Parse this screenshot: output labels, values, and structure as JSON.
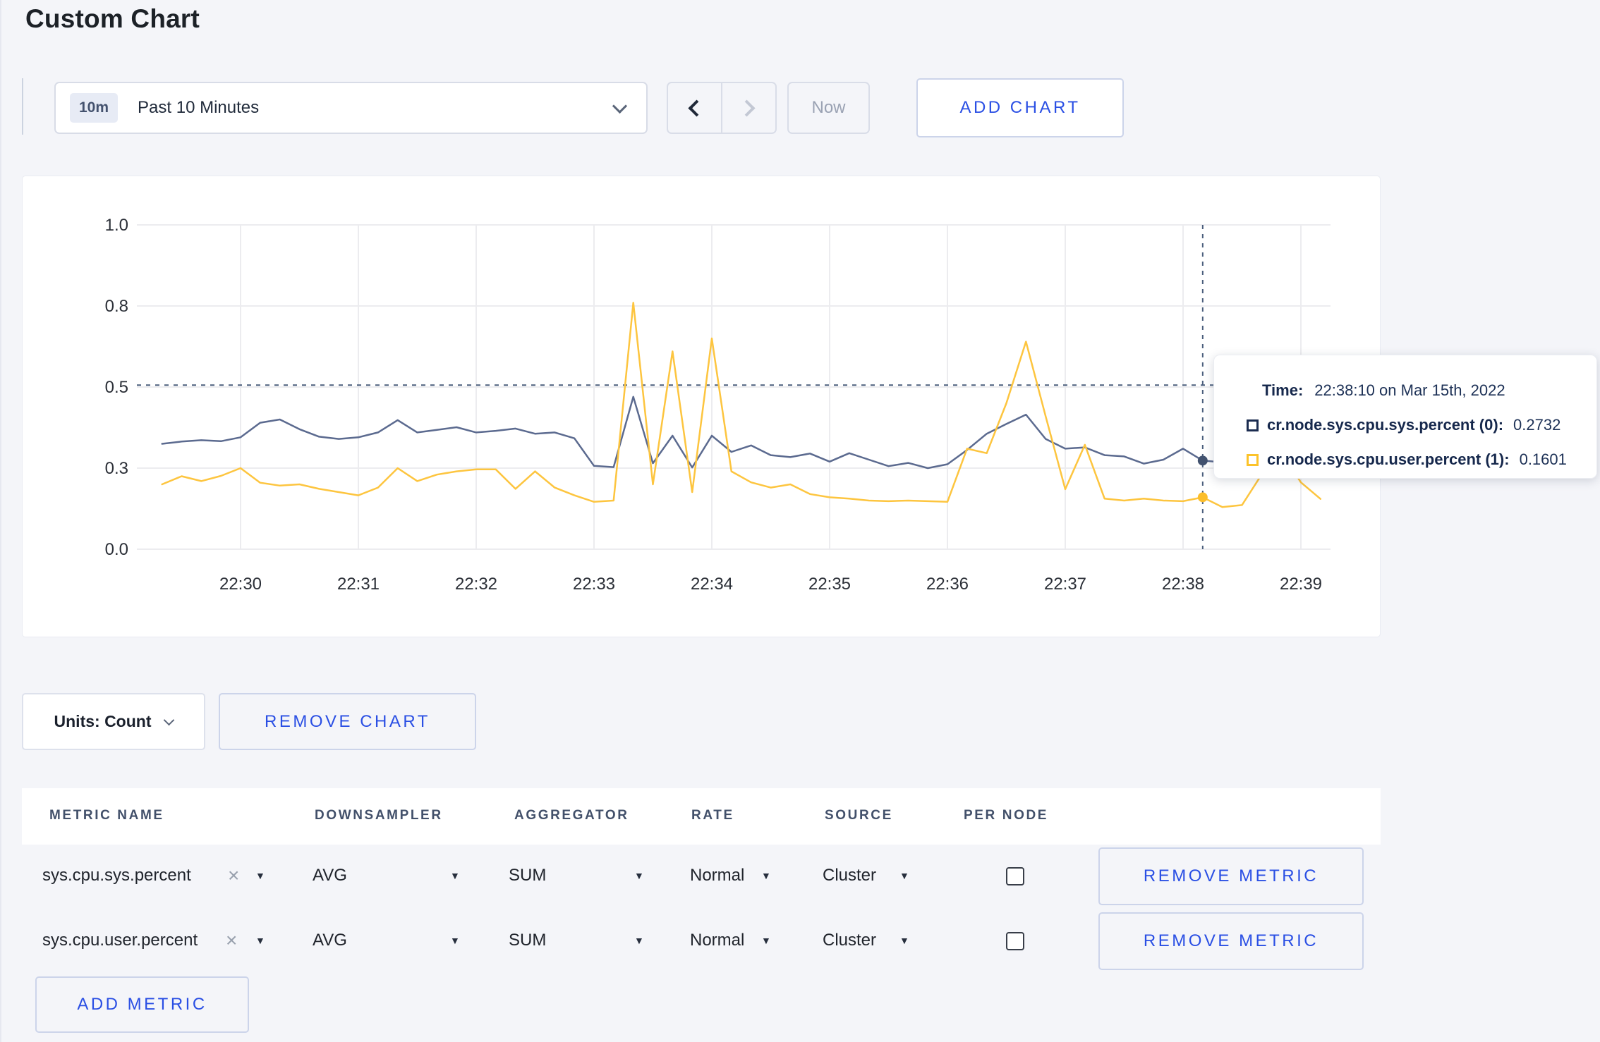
{
  "page": {
    "title": "Custom Chart"
  },
  "toolbar": {
    "time_badge": "10m",
    "time_label": "Past 10 Minutes",
    "now_label": "Now",
    "add_chart_label": "ADD CHART"
  },
  "chart_controls": {
    "units_label": "Units: Count",
    "remove_chart_label": "REMOVE CHART"
  },
  "tooltip": {
    "time_label": "Time:",
    "time_value": "22:38:10 on Mar 15th, 2022",
    "entries": [
      {
        "name": "cr.node.sys.cpu.sys.percent (0):",
        "value": "0.2732",
        "color": "#1b2c50"
      },
      {
        "name": "cr.node.sys.cpu.user.percent (1):",
        "value": "0.1601",
        "color": "#fcc32a"
      }
    ]
  },
  "chart_data": {
    "type": "line",
    "title": "",
    "xlabel": "",
    "ylabel": "",
    "grid": true,
    "legend_position": "tooltip",
    "ylim": [
      0,
      1.0
    ],
    "y_tick_values": [
      0,
      0.25,
      0.5,
      0.75,
      1.0
    ],
    "y_tick_labels": [
      "0.0",
      "0.3",
      "0.5",
      "0.8",
      "1.0"
    ],
    "x_ticks": [
      "22:30",
      "22:31",
      "22:32",
      "22:33",
      "22:34",
      "22:35",
      "22:36",
      "22:37",
      "22:38",
      "22:39"
    ],
    "x_range_sec": [
      "22:29:08",
      "22:39:13"
    ],
    "start_time": "22:29:20",
    "interval_sec": 10,
    "crosshair": {
      "time": "22:38:10",
      "y_value": 0.506
    },
    "colors": {
      "gridline": "#ececef",
      "axis_text": "#2b2f37",
      "crosshair": "#4a5e7c"
    },
    "series": [
      {
        "name": "cr.node.sys.cpu.sys.percent",
        "color": "#5b6a8f",
        "values": [
          0.325,
          0.332,
          0.336,
          0.333,
          0.345,
          0.39,
          0.4,
          0.37,
          0.347,
          0.34,
          0.345,
          0.36,
          0.398,
          0.36,
          0.368,
          0.376,
          0.36,
          0.365,
          0.372,
          0.356,
          0.36,
          0.342,
          0.257,
          0.253,
          0.47,
          0.265,
          0.35,
          0.252,
          0.35,
          0.3,
          0.32,
          0.29,
          0.284,
          0.295,
          0.27,
          0.296,
          0.276,
          0.256,
          0.266,
          0.25,
          0.262,
          0.306,
          0.356,
          0.386,
          0.415,
          0.34,
          0.31,
          0.314,
          0.29,
          0.286,
          0.264,
          0.276,
          0.31,
          0.2732,
          0.268,
          0.28,
          0.274,
          0.285,
          0.28,
          0.276
        ]
      },
      {
        "name": "cr.node.sys.cpu.user.percent",
        "color": "#fdc53f",
        "values": [
          0.2,
          0.225,
          0.21,
          0.226,
          0.25,
          0.205,
          0.196,
          0.2,
          0.186,
          0.176,
          0.166,
          0.19,
          0.25,
          0.21,
          0.23,
          0.24,
          0.246,
          0.246,
          0.186,
          0.24,
          0.19,
          0.166,
          0.146,
          0.15,
          0.76,
          0.2,
          0.61,
          0.176,
          0.65,
          0.24,
          0.206,
          0.19,
          0.2,
          0.17,
          0.16,
          0.156,
          0.15,
          0.148,
          0.15,
          0.148,
          0.146,
          0.31,
          0.296,
          0.45,
          0.64,
          0.41,
          0.185,
          0.322,
          0.156,
          0.15,
          0.156,
          0.15,
          0.148,
          0.1601,
          0.13,
          0.136,
          0.23,
          0.3,
          0.206,
          0.155
        ]
      }
    ]
  },
  "metrics_table": {
    "headers": [
      "METRIC NAME",
      "DOWNSAMPLER",
      "AGGREGATOR",
      "RATE",
      "SOURCE",
      "PER NODE"
    ],
    "rows": [
      {
        "metric": "sys.cpu.sys.percent",
        "downsampler": "AVG",
        "aggregator": "SUM",
        "rate": "Normal",
        "source": "Cluster",
        "per_node": false,
        "remove_label": "REMOVE METRIC"
      },
      {
        "metric": "sys.cpu.user.percent",
        "downsampler": "AVG",
        "aggregator": "SUM",
        "rate": "Normal",
        "source": "Cluster",
        "per_node": false,
        "remove_label": "REMOVE METRIC"
      }
    ],
    "add_metric_label": "ADD METRIC"
  }
}
